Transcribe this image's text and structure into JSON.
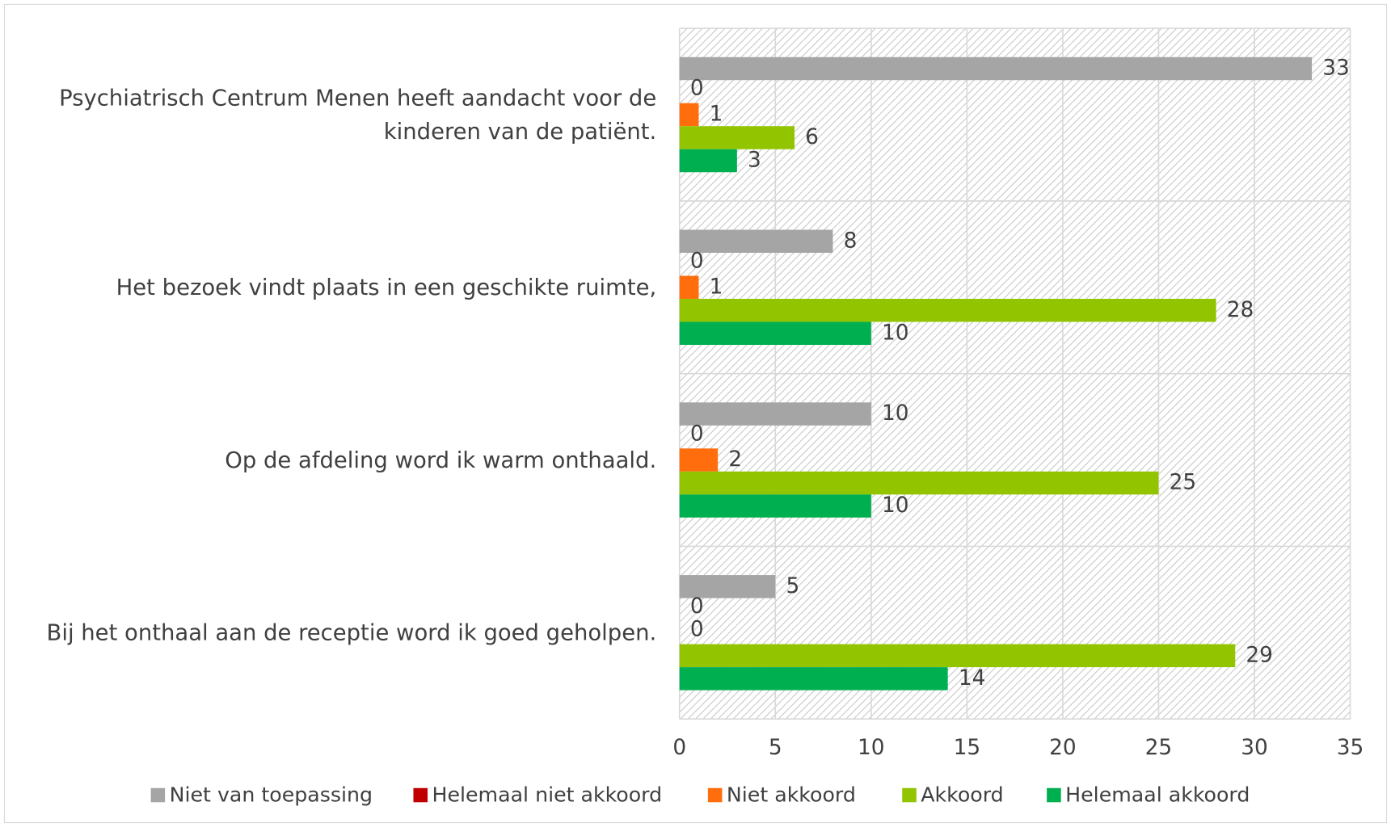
{
  "chart_data": {
    "type": "bar",
    "orientation": "horizontal",
    "categories": [
      "Psychiatrisch Centrum Menen heeft aandacht voor de kinderen van de patiënt.",
      "Het bezoek vindt plaats in een geschikte ruimte,",
      "Op de afdeling word ik warm onthaald.",
      "Bij het onthaal aan de receptie word ik goed geholpen."
    ],
    "series": [
      {
        "name": "Niet van toepassing",
        "color": "#a5a5a5",
        "values": [
          33,
          8,
          10,
          5
        ]
      },
      {
        "name": "Helemaal niet akkoord",
        "color": "#c00000",
        "values": [
          0,
          0,
          0,
          0
        ]
      },
      {
        "name": "Niet akkoord",
        "color": "#ff6d0d",
        "values": [
          1,
          1,
          2,
          0
        ]
      },
      {
        "name": "Akkoord",
        "color": "#92c400",
        "values": [
          6,
          28,
          25,
          29
        ]
      },
      {
        "name": "Helemaal akkoord",
        "color": "#00b050",
        "values": [
          3,
          10,
          10,
          14
        ]
      }
    ],
    "xlim": [
      0,
      35
    ],
    "xticks": [
      0,
      5,
      10,
      15,
      20,
      25,
      30,
      35
    ],
    "grid": true,
    "legend": "bottom"
  }
}
